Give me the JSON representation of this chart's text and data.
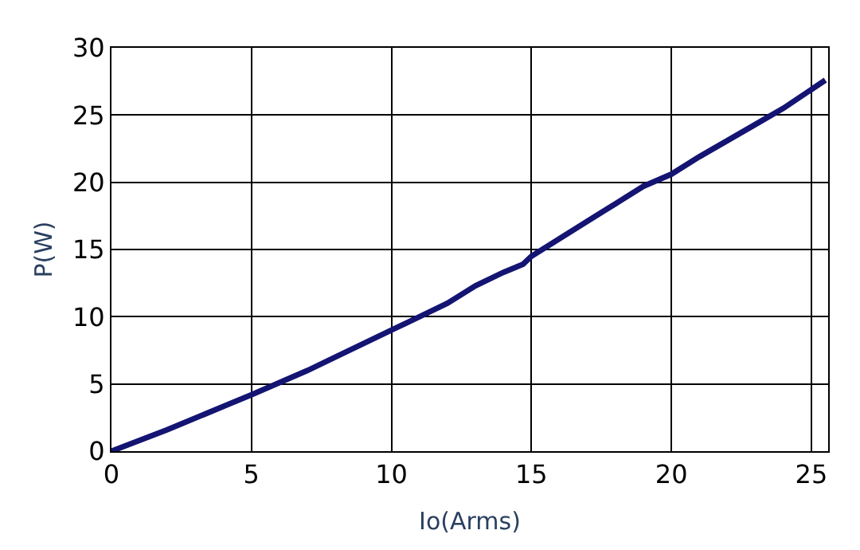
{
  "chart_data": {
    "type": "line",
    "xlabel": "Io(Arms)",
    "ylabel": "P(W)",
    "series": [
      {
        "color": "#141473",
        "x": [
          0,
          2,
          5,
          6,
          7,
          8,
          10,
          11,
          12,
          13,
          14,
          14.7,
          15,
          16,
          17,
          18,
          19,
          20,
          21,
          22,
          23,
          24,
          25.5
        ],
        "values": [
          0,
          1.6,
          4.2,
          5.1,
          6,
          7,
          9,
          10,
          11,
          12.3,
          13.3,
          13.9,
          14.5,
          15.8,
          17.1,
          18.4,
          19.7,
          20.6,
          21.9,
          23.1,
          24.3,
          25.5,
          27.6
        ]
      }
    ],
    "xlim": [
      0,
      25.6
    ],
    "xticks": [
      0,
      5,
      10,
      15,
      20,
      25
    ],
    "ylim": [
      0,
      30
    ],
    "yticks": [
      0,
      5,
      10,
      15,
      20,
      25,
      30
    ],
    "grid": true,
    "legend": false,
    "marker": "none",
    "line_style": "solid"
  }
}
